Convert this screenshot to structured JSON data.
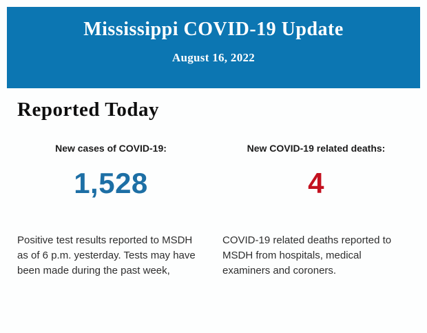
{
  "banner": {
    "title": "Mississippi COVID-19 Update",
    "date": "August 16, 2022",
    "background_color": "#0c76b2",
    "text_color": "#ffffff"
  },
  "content": {
    "heading": "Reported Today",
    "columns": [
      {
        "label": "New cases of COVID-19:",
        "value": "1,528",
        "value_color": "#1d6fa5",
        "description": "Positive test results reported to MSDH as of 6 p.m. yesterday. Tests may have been made during the past week,"
      },
      {
        "label": "New COVID-19 related deaths:",
        "value": "4",
        "value_color": "#c3111f",
        "description": "COVID-19 related deaths reported to MSDH from hospitals, medical examiners and coroners."
      }
    ]
  }
}
